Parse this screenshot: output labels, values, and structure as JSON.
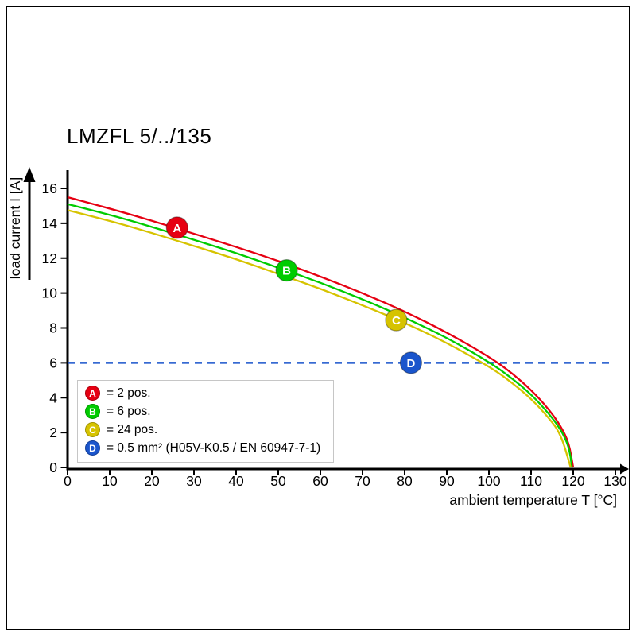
{
  "chart_data": {
    "type": "line",
    "title": "LMZFL 5/../135",
    "xlabel": "ambient temperature T [°C]",
    "ylabel": "load current I [A]",
    "xlim": [
      0,
      130
    ],
    "ylim": [
      0,
      16
    ],
    "x_ticks": [
      0,
      10,
      20,
      30,
      40,
      50,
      60,
      70,
      80,
      90,
      100,
      110,
      120,
      130
    ],
    "y_ticks": [
      0,
      2,
      4,
      6,
      8,
      10,
      12,
      14,
      16
    ],
    "grid": false,
    "axis_color": "#000000",
    "series": [
      {
        "name": "A",
        "description": "2 pos.",
        "color": "#e60012",
        "points": [
          [
            0,
            15.5
          ],
          [
            10,
            14.85
          ],
          [
            20,
            14.15
          ],
          [
            30,
            13.4
          ],
          [
            40,
            12.65
          ],
          [
            50,
            11.85
          ],
          [
            60,
            10.95
          ],
          [
            70,
            10.0
          ],
          [
            80,
            8.95
          ],
          [
            90,
            7.75
          ],
          [
            100,
            6.35
          ],
          [
            105,
            5.5
          ],
          [
            110,
            4.45
          ],
          [
            114,
            3.4
          ],
          [
            117,
            2.4
          ],
          [
            119,
            1.4
          ],
          [
            120,
            0
          ]
        ]
      },
      {
        "name": "B",
        "description": "6 pos.",
        "color": "#00cc00",
        "points": [
          [
            0,
            15.1
          ],
          [
            10,
            14.5
          ],
          [
            20,
            13.8
          ],
          [
            30,
            13.05
          ],
          [
            40,
            12.3
          ],
          [
            50,
            11.45
          ],
          [
            60,
            10.6
          ],
          [
            70,
            9.65
          ],
          [
            80,
            8.6
          ],
          [
            90,
            7.45
          ],
          [
            100,
            6.05
          ],
          [
            105,
            5.2
          ],
          [
            110,
            4.2
          ],
          [
            114,
            3.15
          ],
          [
            117,
            2.2
          ],
          [
            119,
            1.2
          ],
          [
            119.7,
            0
          ]
        ]
      },
      {
        "name": "C",
        "description": "24 pos.",
        "color": "#d6c300",
        "points": [
          [
            0,
            14.75
          ],
          [
            10,
            14.15
          ],
          [
            20,
            13.45
          ],
          [
            30,
            12.7
          ],
          [
            40,
            11.95
          ],
          [
            50,
            11.1
          ],
          [
            60,
            10.25
          ],
          [
            70,
            9.3
          ],
          [
            80,
            8.3
          ],
          [
            90,
            7.15
          ],
          [
            100,
            5.8
          ],
          [
            105,
            4.95
          ],
          [
            110,
            3.95
          ],
          [
            114,
            2.9
          ],
          [
            117,
            1.95
          ],
          [
            119.4,
            0
          ]
        ]
      }
    ],
    "reference_line": {
      "name": "D",
      "value": 6,
      "color": "#1a55cc",
      "style": "dashed"
    },
    "markers": [
      {
        "letter": "A",
        "x": 26,
        "y": 13.75,
        "color": "#e60012"
      },
      {
        "letter": "B",
        "x": 52,
        "y": 11.3,
        "color": "#00cc00"
      },
      {
        "letter": "C",
        "x": 78,
        "y": 8.45,
        "color": "#d6c300"
      },
      {
        "letter": "D",
        "x": 81.5,
        "y": 6,
        "color": "#1a55cc"
      }
    ]
  },
  "legend": {
    "items": [
      {
        "letter": "A",
        "color": "#e60012",
        "label": "= 2 pos."
      },
      {
        "letter": "B",
        "color": "#00cc00",
        "label": "= 6 pos."
      },
      {
        "letter": "C",
        "color": "#d6c300",
        "label": "= 24 pos."
      },
      {
        "letter": "D",
        "color": "#1a55cc",
        "label": "= 0.5 mm² (H05V-K0.5 / EN 60947-7-1)"
      }
    ]
  }
}
